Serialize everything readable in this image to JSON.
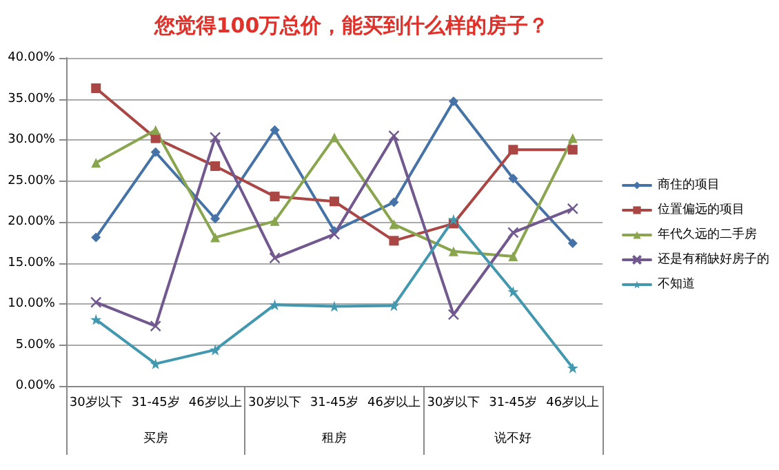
{
  "chart_data": {
    "type": "line",
    "title": "您觉得100万总价，能买到什么样的房子？",
    "categories": [
      "30岁以下",
      "31-45岁",
      "46岁以上",
      "30岁以下",
      "31-45岁",
      "46岁以上",
      "30岁以下",
      "31-45岁",
      "46岁以上"
    ],
    "annotations": [
      "买房",
      "租房",
      "说不好"
    ],
    "series": [
      {
        "name": "商住的项目",
        "color": "#4572a7",
        "marker": "diamond",
        "values": [
          18.1,
          28.5,
          20.4,
          31.2,
          18.9,
          22.4,
          34.7,
          25.3,
          17.4
        ]
      },
      {
        "name": "位置偏远的项目",
        "color": "#aa4643",
        "marker": "square",
        "values": [
          36.3,
          30.2,
          26.8,
          23.1,
          22.5,
          17.7,
          19.8,
          28.8,
          28.8
        ]
      },
      {
        "name": "年代久远的二手房",
        "color": "#89a54e",
        "marker": "triangle",
        "values": [
          27.2,
          31.2,
          18.1,
          20.1,
          30.3,
          19.7,
          16.4,
          15.8,
          30.2
        ]
      },
      {
        "name": "还是有稍缺好房子的",
        "color": "#71588f",
        "marker": "cross",
        "values": [
          10.2,
          7.3,
          30.3,
          15.6,
          18.5,
          30.5,
          8.7,
          18.7,
          21.6
        ]
      },
      {
        "name": "不知道",
        "color": "#4198af",
        "marker": "star",
        "values": [
          8.1,
          2.7,
          4.4,
          9.9,
          9.7,
          9.8,
          20.3,
          11.5,
          2.2
        ]
      }
    ],
    "ylim": [
      0,
      40
    ],
    "yticks": [
      {
        "value": 0,
        "label": "0.00%"
      },
      {
        "value": 5,
        "label": "5.00%"
      },
      {
        "value": 10,
        "label": "10.00%"
      },
      {
        "value": 15,
        "label": "15.00%"
      },
      {
        "value": 20,
        "label": "20.00%"
      },
      {
        "value": 25,
        "label": "25.00%"
      },
      {
        "value": 30,
        "label": "30.00%"
      },
      {
        "value": 35,
        "label": "35.00%"
      },
      {
        "value": 40,
        "label": "40.00%"
      }
    ],
    "grid": "y",
    "legend": "right"
  }
}
